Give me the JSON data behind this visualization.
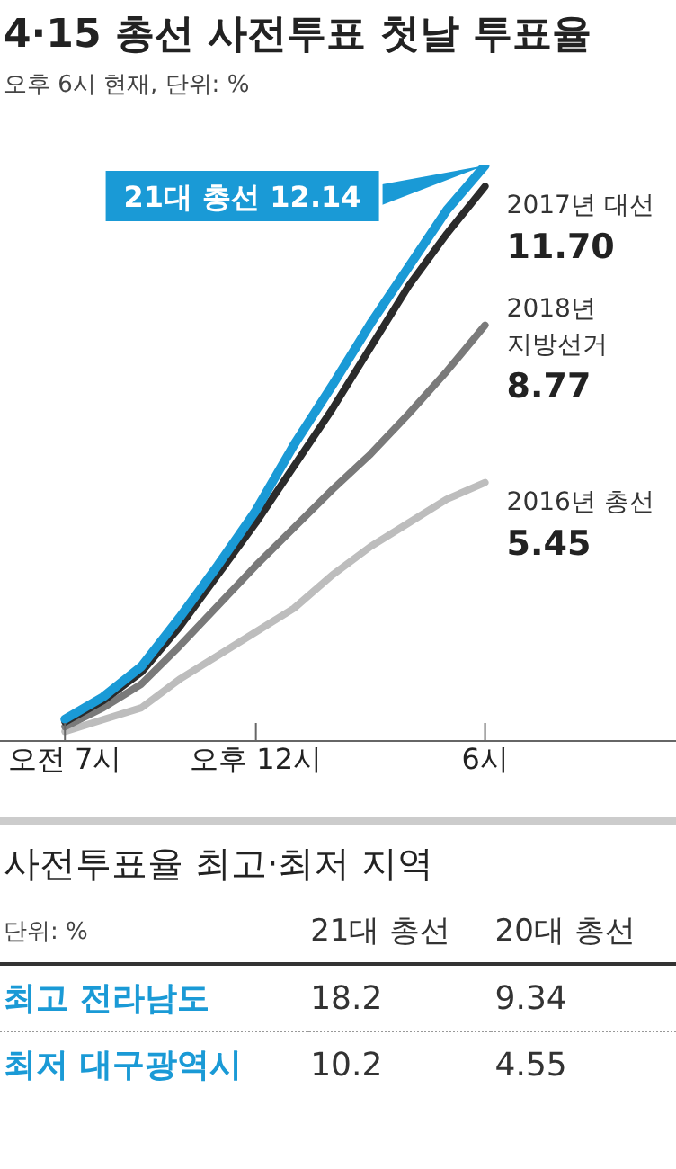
{
  "chart_data": [
    {
      "type": "line",
      "title": "4·15 총선 사전투표 첫날 투표율",
      "subtitle": "오후 6시 현재, 단위: %",
      "categories": [
        "오전 7시",
        null,
        null,
        null,
        null,
        "오후 12시",
        null,
        null,
        null,
        null,
        null,
        "6시"
      ],
      "tick_labels": "x",
      "marker": "none",
      "line_style": "solid",
      "series": [
        {
          "name": "21대 총선",
          "color": "#1a9ad6",
          "values": [
            0.46,
            0.93,
            1.57,
            2.6,
            3.7,
            4.86,
            6.25,
            7.5,
            8.8,
            10.0,
            11.2,
            12.14
          ],
          "value_labels": [
            null,
            null,
            null,
            null,
            null,
            null,
            null,
            null,
            null,
            null,
            null,
            "12.14"
          ]
        },
        {
          "name": "2017년 대선",
          "color": "#2b2b2b",
          "values": [
            0.4,
            0.85,
            1.45,
            2.4,
            3.5,
            4.6,
            5.8,
            7.0,
            8.3,
            9.6,
            10.7,
            11.7
          ],
          "value_labels": [
            null,
            null,
            null,
            null,
            null,
            null,
            null,
            null,
            null,
            null,
            null,
            "11.70"
          ]
        },
        {
          "name": "2018년 지방선거",
          "color": "#7a7a7a",
          "values": [
            0.3,
            0.7,
            1.2,
            2.0,
            2.85,
            3.7,
            4.5,
            5.3,
            6.05,
            6.9,
            7.8,
            8.77
          ],
          "value_labels": [
            null,
            null,
            null,
            null,
            null,
            null,
            null,
            null,
            null,
            null,
            null,
            "8.77"
          ]
        },
        {
          "name": "2016년 총선",
          "color": "#bdbdbd",
          "values": [
            0.2,
            0.45,
            0.7,
            1.3,
            1.8,
            2.3,
            2.8,
            3.5,
            4.1,
            4.6,
            5.1,
            5.45
          ],
          "value_labels": [
            null,
            null,
            null,
            null,
            null,
            null,
            null,
            null,
            null,
            null,
            null,
            "5.45"
          ]
        }
      ]
    },
    {
      "type": "other",
      "title": "사전투표율 최고·최저 지역",
      "annotations": [
        "단위: %"
      ],
      "categories": [
        "최고 전라남도",
        "최저 대구광역시"
      ],
      "data_labels": true,
      "series": [
        {
          "name": "21대 총선",
          "values": [
            18.2,
            10.2
          ]
        },
        {
          "name": "20대 총선",
          "values": [
            9.34,
            4.55
          ]
        }
      ]
    }
  ]
}
